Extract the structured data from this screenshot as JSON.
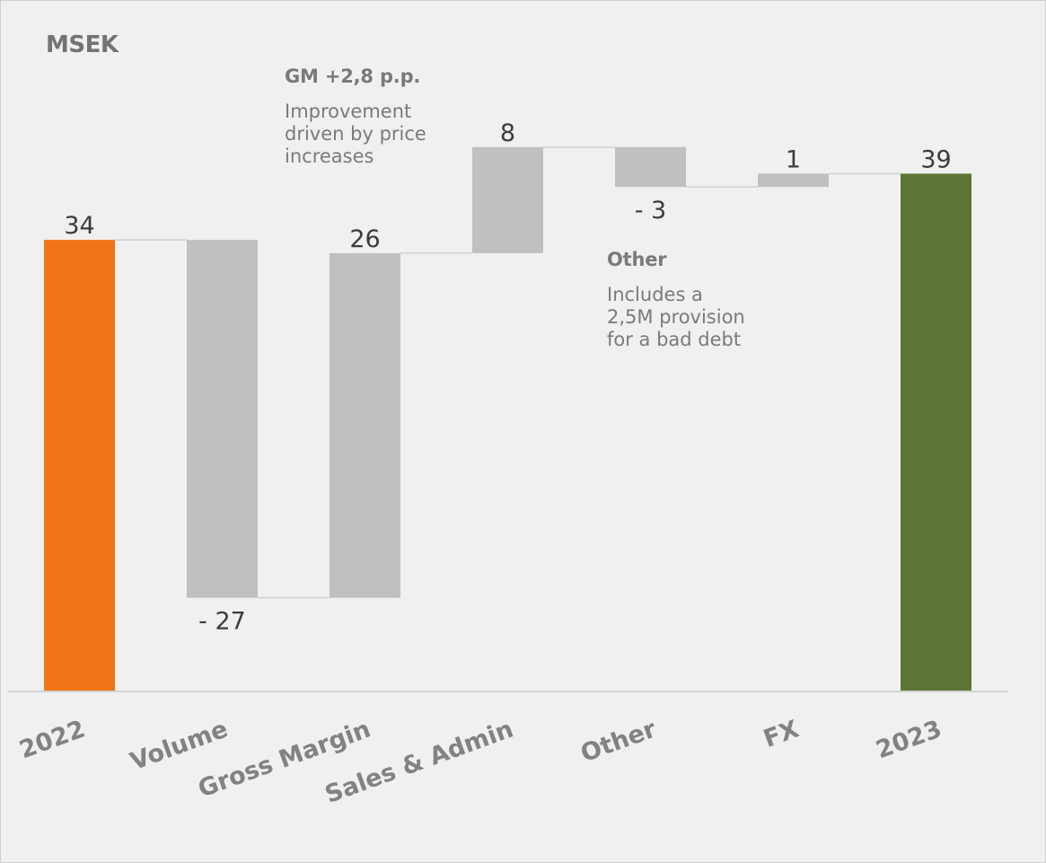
{
  "unit_label": "MSEK",
  "annotations": {
    "gross_margin": {
      "title": "GM +2,8 p.p.",
      "text": "Improvement driven by price increases"
    },
    "other": {
      "title": "Other",
      "text": "Includes a 2,5M provision for a bad debt"
    }
  },
  "colors": {
    "start": "#f07516",
    "end": "#5c7535",
    "delta": "#c0c0c0",
    "connector": "#cfcfcf",
    "baseline": "#d3d3d3",
    "value_text": "#3c3c3c",
    "category_text": "#828282"
  },
  "chart_data": {
    "type": "waterfall",
    "title": "",
    "categories": [
      "2022",
      "Volume",
      "Gross Margin",
      "Sales & Admin",
      "Other",
      "FX",
      "2023"
    ],
    "values": [
      34,
      -27,
      26,
      8,
      -3,
      1,
      39
    ],
    "kinds": [
      "total",
      "delta",
      "delta",
      "delta",
      "delta",
      "delta",
      "total"
    ],
    "value_labels": [
      "34",
      "- 27",
      "26",
      "8",
      "- 3",
      "1",
      "39"
    ],
    "ylim": [
      0,
      55
    ],
    "grid": false,
    "legend": "none"
  }
}
